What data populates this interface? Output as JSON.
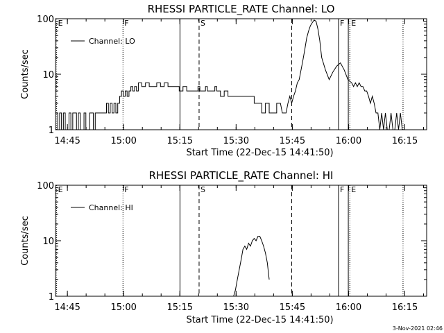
{
  "chart_data": [
    {
      "type": "line",
      "title": "RHESSI PARTICLE_RATE Channel: LO",
      "xlabel": "Start Time (22-Dec-15 14:41:50)",
      "ylabel": "Counts/sec",
      "x_unit": "minutes since 14:41:50",
      "xlim": [
        0,
        99
      ],
      "ylim": [
        1,
        100
      ],
      "yscale": "log",
      "x_ticks": [
        {
          "t": 3.17,
          "label": "14:45"
        },
        {
          "t": 18.17,
          "label": "15:00"
        },
        {
          "t": 33.17,
          "label": "15:15"
        },
        {
          "t": 48.17,
          "label": "15:30"
        },
        {
          "t": 63.17,
          "label": "15:45"
        },
        {
          "t": 78.17,
          "label": "16:00"
        },
        {
          "t": 93.17,
          "label": "16:15"
        }
      ],
      "y_ticks": [
        {
          "v": 1,
          "label": "1"
        },
        {
          "v": 10,
          "label": "10"
        },
        {
          "v": 100,
          "label": "100"
        }
      ],
      "legend": {
        "label": "Channel: LO",
        "placement": "top-left"
      },
      "vlines": [
        {
          "t": 0.3,
          "style": "dotted",
          "flag": "E"
        },
        {
          "t": 18.0,
          "style": "dotted",
          "flag": "F"
        },
        {
          "t": 33.2,
          "style": "solid",
          "flag": ""
        },
        {
          "t": 38.3,
          "style": "dashed",
          "flag": "S"
        },
        {
          "t": 63.0,
          "style": "dashed",
          "flag": ""
        },
        {
          "t": 75.5,
          "style": "solid",
          "flag": "F"
        },
        {
          "t": 78.1,
          "style": "solid",
          "flag": ""
        },
        {
          "t": 78.5,
          "style": "dotted",
          "flag": "E"
        },
        {
          "t": 92.7,
          "style": "dotted",
          "flag": ""
        }
      ],
      "series": [
        {
          "name": "Channel: LO",
          "x": [
            0.2,
            0.6,
            1.1,
            1.6,
            2.1,
            2.6,
            3.1,
            3.6,
            4.1,
            4.6,
            5.1,
            5.6,
            6.1,
            6.6,
            7.1,
            7.6,
            8.1,
            8.6,
            9.1,
            9.6,
            10.1,
            10.6,
            11.1,
            11.6,
            12.1,
            12.6,
            13.1,
            13.6,
            14.1,
            14.6,
            15.1,
            15.6,
            16.1,
            16.6,
            17.1,
            17.6,
            18.1,
            18.6,
            19.1,
            19.6,
            20.1,
            20.6,
            21.1,
            21.6,
            22.1,
            23,
            24,
            25,
            26,
            27,
            28,
            29,
            30,
            31,
            32,
            33,
            33.5,
            34,
            35,
            36,
            37,
            38,
            38.5,
            39,
            39.5,
            40,
            40.5,
            41,
            42,
            42.5,
            43,
            43.5,
            44,
            45,
            46,
            47,
            48,
            49,
            50,
            51,
            52,
            53,
            54,
            55,
            56,
            57,
            58,
            59,
            60,
            60.5,
            61,
            61.5,
            62,
            62.5,
            63,
            63.5,
            64,
            64.5,
            65,
            65.5,
            66,
            66.5,
            67,
            67.5,
            68,
            68.5,
            69,
            69.5,
            70,
            70.5,
            71,
            72,
            73,
            74,
            75,
            76,
            77,
            78,
            79,
            79.5,
            80,
            80.5,
            81,
            81.5,
            82,
            82.5,
            83,
            83.5,
            84,
            84.5,
            85,
            85.5,
            86,
            86.5,
            87,
            87.5,
            88,
            88.5,
            89,
            89.5,
            90,
            90.5,
            91,
            91.5,
            92,
            92.5,
            93
          ],
          "y": [
            2,
            1,
            2,
            1,
            2,
            1,
            1,
            2,
            1,
            2,
            2,
            1,
            2,
            1,
            1,
            2,
            1,
            1,
            2,
            2,
            1,
            2,
            2,
            2,
            2,
            2,
            2,
            3,
            2,
            3,
            2,
            3,
            2,
            3,
            4,
            5,
            4,
            5,
            4,
            5,
            6,
            5,
            6,
            5,
            7,
            6,
            7,
            6,
            6,
            7,
            6,
            7,
            6,
            6,
            6,
            5,
            5,
            6,
            5,
            5,
            5,
            6,
            5,
            5,
            5,
            6,
            5,
            5,
            5,
            6,
            5,
            5,
            4,
            5,
            4,
            4,
            4,
            4,
            4,
            4,
            4,
            3,
            3,
            2,
            3,
            2,
            2,
            3,
            3,
            2,
            2,
            2,
            3,
            4,
            3,
            4,
            5,
            7,
            8,
            12,
            18,
            28,
            45,
            60,
            75,
            85,
            95,
            90,
            65,
            40,
            20,
            12,
            8,
            11,
            14,
            16,
            12,
            8,
            7,
            6,
            7,
            6,
            7,
            6,
            6,
            5,
            5,
            4,
            3,
            4,
            3,
            2,
            2,
            1,
            2,
            1,
            2,
            1,
            1,
            2,
            1,
            1,
            2,
            1,
            2,
            1,
            1
          ]
        }
      ]
    },
    {
      "type": "line",
      "title": "RHESSI PARTICLE_RATE Channel: HI",
      "xlabel": "Start Time (22-Dec-15 14:41:50)",
      "ylabel": "Counts/sec",
      "x_unit": "minutes since 14:41:50",
      "xlim": [
        0,
        99
      ],
      "ylim": [
        1,
        100
      ],
      "yscale": "log",
      "x_ticks": [
        {
          "t": 3.17,
          "label": "14:45"
        },
        {
          "t": 18.17,
          "label": "15:00"
        },
        {
          "t": 33.17,
          "label": "15:15"
        },
        {
          "t": 48.17,
          "label": "15:30"
        },
        {
          "t": 63.17,
          "label": "15:45"
        },
        {
          "t": 78.17,
          "label": "16:00"
        },
        {
          "t": 93.17,
          "label": "16:15"
        }
      ],
      "y_ticks": [
        {
          "v": 1,
          "label": "1"
        },
        {
          "v": 10,
          "label": "10"
        },
        {
          "v": 100,
          "label": "100"
        }
      ],
      "legend": {
        "label": "Channel: HI",
        "placement": "top-left"
      },
      "vlines": [
        {
          "t": 0.3,
          "style": "dotted",
          "flag": "E"
        },
        {
          "t": 18.0,
          "style": "dotted",
          "flag": "F"
        },
        {
          "t": 33.2,
          "style": "solid",
          "flag": ""
        },
        {
          "t": 38.3,
          "style": "dashed",
          "flag": "S"
        },
        {
          "t": 63.0,
          "style": "dashed",
          "flag": ""
        },
        {
          "t": 75.5,
          "style": "solid",
          "flag": "F"
        },
        {
          "t": 78.1,
          "style": "solid",
          "flag": ""
        },
        {
          "t": 78.5,
          "style": "dotted",
          "flag": "E"
        },
        {
          "t": 92.7,
          "style": "dotted",
          "flag": ""
        }
      ],
      "series": [
        {
          "name": "Channel: HI",
          "x": [
            47.5,
            48,
            48.5,
            49,
            49.5,
            50,
            50.5,
            51,
            51.5,
            52,
            52.5,
            53,
            53.5,
            54,
            54.5,
            55,
            55.5,
            56,
            56.5,
            57
          ],
          "y": [
            1,
            1.3,
            2,
            3,
            4.5,
            7,
            8,
            7,
            9,
            8,
            10,
            11,
            10,
            12,
            12,
            10,
            8,
            6,
            4,
            2
          ]
        }
      ]
    }
  ],
  "timestamp": "3-Nov-2021 02:46"
}
